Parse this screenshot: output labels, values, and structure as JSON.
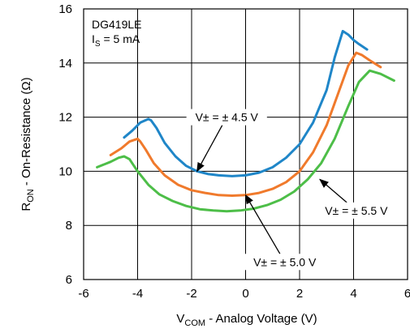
{
  "chart_data": {
    "type": "line",
    "device_label": "DG419LE",
    "condition": {
      "symbol": "I",
      "sub": "S",
      "rest": " = 5 mA"
    },
    "xlabel": {
      "main": "V",
      "sub": "COM",
      "rest": " - Analog Voltage (V)"
    },
    "ylabel": {
      "main": "R",
      "sub": "ON",
      "rest": " - On-Resistance (Ω)"
    },
    "xlim": [
      -6,
      6
    ],
    "ylim": [
      6,
      16
    ],
    "xticks": [
      "-6",
      "-4",
      "-2",
      "0",
      "2",
      "4",
      "6"
    ],
    "yticks": [
      "6",
      "8",
      "10",
      "12",
      "14",
      "16"
    ],
    "grid": true,
    "series": [
      {
        "label": "V± = ± 4.5 V",
        "color": "#1f86c8",
        "x": [
          -4.5,
          -4.2,
          -3.9,
          -3.6,
          -3.5,
          -3.3,
          -3.0,
          -2.6,
          -2.2,
          -1.8,
          -1.4,
          -1.0,
          -0.5,
          0.0,
          0.5,
          1.0,
          1.5,
          2.0,
          2.5,
          3.0,
          3.3,
          3.6,
          3.8,
          4.0,
          4.2,
          4.5
        ],
        "y": [
          11.25,
          11.5,
          11.8,
          11.93,
          11.88,
          11.6,
          11.05,
          10.55,
          10.2,
          10.0,
          9.9,
          9.85,
          9.82,
          9.85,
          9.95,
          10.15,
          10.5,
          11.0,
          11.8,
          13.0,
          14.2,
          15.18,
          15.05,
          14.85,
          14.7,
          14.5
        ]
      },
      {
        "label": "V± = ± 5.0 V",
        "color": "#f07a2c",
        "x": [
          -5.0,
          -4.6,
          -4.3,
          -4.0,
          -3.9,
          -3.7,
          -3.4,
          -3.0,
          -2.5,
          -2.0,
          -1.5,
          -1.0,
          -0.5,
          0.0,
          0.5,
          1.0,
          1.5,
          2.0,
          2.5,
          3.0,
          3.4,
          3.8,
          4.1,
          4.3,
          4.6,
          5.0
        ],
        "y": [
          10.6,
          10.85,
          11.1,
          11.2,
          11.1,
          10.8,
          10.3,
          9.85,
          9.5,
          9.3,
          9.2,
          9.12,
          9.1,
          9.12,
          9.2,
          9.35,
          9.6,
          10.0,
          10.7,
          11.7,
          12.8,
          13.9,
          14.38,
          14.3,
          14.1,
          13.85
        ]
      },
      {
        "label": "V± = ± 5.5 V",
        "color": "#4dbe48",
        "x": [
          -5.5,
          -5.0,
          -4.7,
          -4.5,
          -4.3,
          -4.0,
          -3.6,
          -3.2,
          -2.7,
          -2.2,
          -1.7,
          -1.2,
          -0.7,
          -0.2,
          0.3,
          0.8,
          1.3,
          1.8,
          2.3,
          2.8,
          3.3,
          3.8,
          4.2,
          4.6,
          5.0,
          5.5
        ],
        "y": [
          10.15,
          10.35,
          10.5,
          10.55,
          10.45,
          10.0,
          9.5,
          9.15,
          8.9,
          8.72,
          8.6,
          8.55,
          8.52,
          8.55,
          8.62,
          8.75,
          8.95,
          9.25,
          9.7,
          10.3,
          11.2,
          12.4,
          13.3,
          13.72,
          13.6,
          13.35
        ]
      }
    ],
    "annotations": [
      {
        "series": 0,
        "text": "V± = ± 4.5 V",
        "xy": [
          -1.8,
          10.0
        ],
        "text_xy": [
          -0.7,
          12.0
        ],
        "anchor": "middle"
      },
      {
        "series": 1,
        "text": "V± = ± 5.0 V",
        "xy": [
          0.0,
          9.12
        ],
        "text_xy": [
          1.45,
          6.65
        ],
        "anchor": "middle"
      },
      {
        "series": 2,
        "text": "V± = ± 5.5 V",
        "xy": [
          2.75,
          9.7
        ],
        "text_xy": [
          4.1,
          8.55
        ],
        "anchor": "middle"
      }
    ]
  }
}
